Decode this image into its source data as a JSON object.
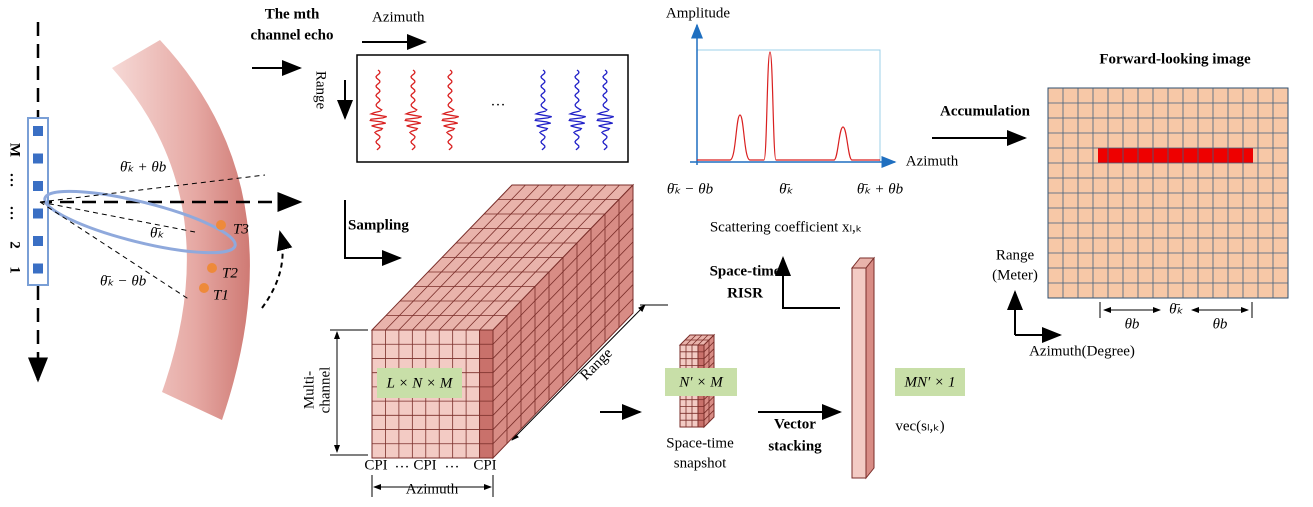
{
  "left_panel": {
    "array_labels": [
      "M",
      "…",
      "…",
      "2",
      "1"
    ],
    "angles": [
      "θ̄ₖ + θb",
      "θ̄ₖ",
      "θ̄ₖ − θb"
    ],
    "targets": [
      "T3",
      "T2",
      "T1"
    ]
  },
  "echo": {
    "title": [
      "The mth",
      "channel echo"
    ],
    "azimuth": "Azimuth",
    "range": "Range",
    "ellipsis": "…"
  },
  "amplitude_plot": {
    "y_label": "Amplitude",
    "x_label": "Azimuth",
    "ticks": [
      "θ̄ₖ − θb",
      "θ̄ₖ",
      "θ̄ₖ + θb"
    ],
    "caption": "Scattering coefficient xₗ,ₖ"
  },
  "accumulation": "Accumulation",
  "image": {
    "title": "Forward-looking image",
    "y_label": [
      "Range",
      "(Meter)"
    ],
    "x_label": "Azimuth(Degree)",
    "spans": [
      "θb",
      "θ̄ₖ",
      "θb"
    ]
  },
  "sampling": "Sampling",
  "cube": {
    "size": "L × N × M",
    "y_label": [
      "Multi-",
      "channel"
    ],
    "depth_label": "Range",
    "cpi": [
      "CPI",
      "…",
      "CPI",
      "…",
      "CPI"
    ],
    "x_label": "Azimuth"
  },
  "snapshot": {
    "size": "N′ × M",
    "label": [
      "Space-time",
      "snapshot"
    ]
  },
  "stacking": [
    "Vector",
    "stacking"
  ],
  "vector": {
    "size": "MN′ × 1",
    "label": "vec(sₗ,ₖ)"
  },
  "risr": [
    "Space-time",
    "RISR"
  ]
}
